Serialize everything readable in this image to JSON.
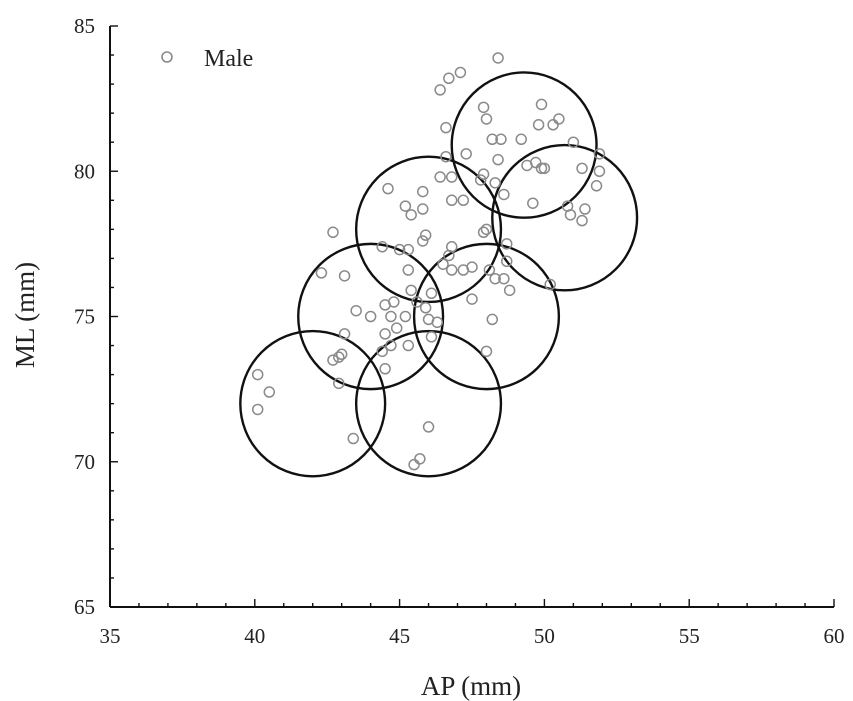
{
  "chart_data": {
    "type": "scatter",
    "title": "",
    "xlabel": "AP (mm)",
    "ylabel": "ML (mm)",
    "xlim": [
      35,
      60
    ],
    "ylim": [
      65,
      85
    ],
    "x_ticks": [
      "35",
      "40",
      "45",
      "50",
      "55",
      "60"
    ],
    "y_ticks": [
      "65",
      "70",
      "75",
      "80",
      "85"
    ],
    "grid": false,
    "legend": {
      "position": "top-left",
      "entries": [
        "Male"
      ]
    },
    "series": [
      {
        "name": "Male",
        "marker": "hollow-circle",
        "color": "#8a8a8a",
        "points": [
          [
            48.4,
            83.9
          ],
          [
            47.1,
            83.4
          ],
          [
            46.7,
            83.2
          ],
          [
            46.4,
            82.8
          ],
          [
            47.9,
            82.2
          ],
          [
            49.9,
            82.3
          ],
          [
            48.0,
            81.8
          ],
          [
            50.5,
            81.8
          ],
          [
            49.8,
            81.6
          ],
          [
            50.3,
            81.6
          ],
          [
            46.6,
            81.5
          ],
          [
            48.2,
            81.1
          ],
          [
            48.5,
            81.1
          ],
          [
            49.2,
            81.1
          ],
          [
            51.0,
            81.0
          ],
          [
            51.9,
            80.6
          ],
          [
            47.3,
            80.6
          ],
          [
            46.6,
            80.5
          ],
          [
            48.4,
            80.4
          ],
          [
            49.4,
            80.2
          ],
          [
            49.7,
            80.3
          ],
          [
            50.0,
            80.1
          ],
          [
            51.3,
            80.1
          ],
          [
            49.9,
            80.1
          ],
          [
            51.9,
            80.0
          ],
          [
            47.9,
            79.9
          ],
          [
            46.4,
            79.8
          ],
          [
            46.8,
            79.8
          ],
          [
            47.8,
            79.7
          ],
          [
            48.3,
            79.6
          ],
          [
            51.8,
            79.5
          ],
          [
            44.6,
            79.4
          ],
          [
            45.8,
            79.3
          ],
          [
            48.6,
            79.2
          ],
          [
            46.8,
            79.0
          ],
          [
            47.2,
            79.0
          ],
          [
            49.6,
            78.9
          ],
          [
            45.2,
            78.8
          ],
          [
            51.4,
            78.7
          ],
          [
            45.8,
            78.7
          ],
          [
            50.8,
            78.8
          ],
          [
            45.4,
            78.5
          ],
          [
            50.9,
            78.5
          ],
          [
            51.3,
            78.3
          ],
          [
            48.0,
            78.0
          ],
          [
            47.9,
            77.9
          ],
          [
            42.7,
            77.9
          ],
          [
            45.9,
            77.8
          ],
          [
            45.8,
            77.6
          ],
          [
            48.7,
            77.5
          ],
          [
            44.4,
            77.4
          ],
          [
            46.8,
            77.4
          ],
          [
            45.3,
            77.3
          ],
          [
            45.0,
            77.3
          ],
          [
            46.7,
            77.1
          ],
          [
            48.7,
            76.9
          ],
          [
            46.5,
            76.8
          ],
          [
            47.5,
            76.7
          ],
          [
            45.3,
            76.6
          ],
          [
            48.1,
            76.6
          ],
          [
            46.8,
            76.6
          ],
          [
            47.2,
            76.6
          ],
          [
            48.3,
            76.3
          ],
          [
            48.6,
            76.3
          ],
          [
            42.3,
            76.5
          ],
          [
            43.1,
            76.4
          ],
          [
            45.4,
            75.9
          ],
          [
            50.2,
            76.1
          ],
          [
            46.1,
            75.8
          ],
          [
            48.8,
            75.9
          ],
          [
            47.5,
            75.6
          ],
          [
            44.5,
            75.4
          ],
          [
            44.8,
            75.5
          ],
          [
            45.6,
            75.5
          ],
          [
            45.9,
            75.3
          ],
          [
            43.5,
            75.2
          ],
          [
            44.0,
            75.0
          ],
          [
            44.7,
            75.0
          ],
          [
            45.2,
            75.0
          ],
          [
            46.0,
            74.9
          ],
          [
            46.3,
            74.8
          ],
          [
            48.2,
            74.9
          ],
          [
            44.9,
            74.6
          ],
          [
            44.5,
            74.4
          ],
          [
            43.1,
            74.4
          ],
          [
            46.1,
            74.3
          ],
          [
            45.3,
            74.0
          ],
          [
            44.7,
            74.0
          ],
          [
            44.4,
            73.8
          ],
          [
            43.0,
            73.7
          ],
          [
            48.0,
            73.8
          ],
          [
            42.7,
            73.5
          ],
          [
            42.9,
            73.6
          ],
          [
            40.1,
            73.0
          ],
          [
            44.5,
            73.2
          ],
          [
            40.5,
            72.4
          ],
          [
            42.9,
            72.7
          ],
          [
            40.1,
            71.8
          ],
          [
            46.0,
            71.2
          ],
          [
            43.4,
            70.8
          ],
          [
            45.7,
            70.1
          ],
          [
            45.5,
            69.9
          ]
        ]
      }
    ],
    "circles": [
      {
        "center": [
          42.0,
          72.0
        ],
        "radius": 2.5
      },
      {
        "center": [
          46.0,
          72.0
        ],
        "radius": 2.5
      },
      {
        "center": [
          44.0,
          75.0
        ],
        "radius": 2.5
      },
      {
        "center": [
          48.0,
          75.0
        ],
        "radius": 2.5
      },
      {
        "center": [
          46.0,
          78.0
        ],
        "radius": 2.5
      },
      {
        "center": [
          50.7,
          78.4
        ],
        "radius": 2.5
      },
      {
        "center": [
          49.3,
          80.9
        ],
        "radius": 2.5
      }
    ]
  }
}
